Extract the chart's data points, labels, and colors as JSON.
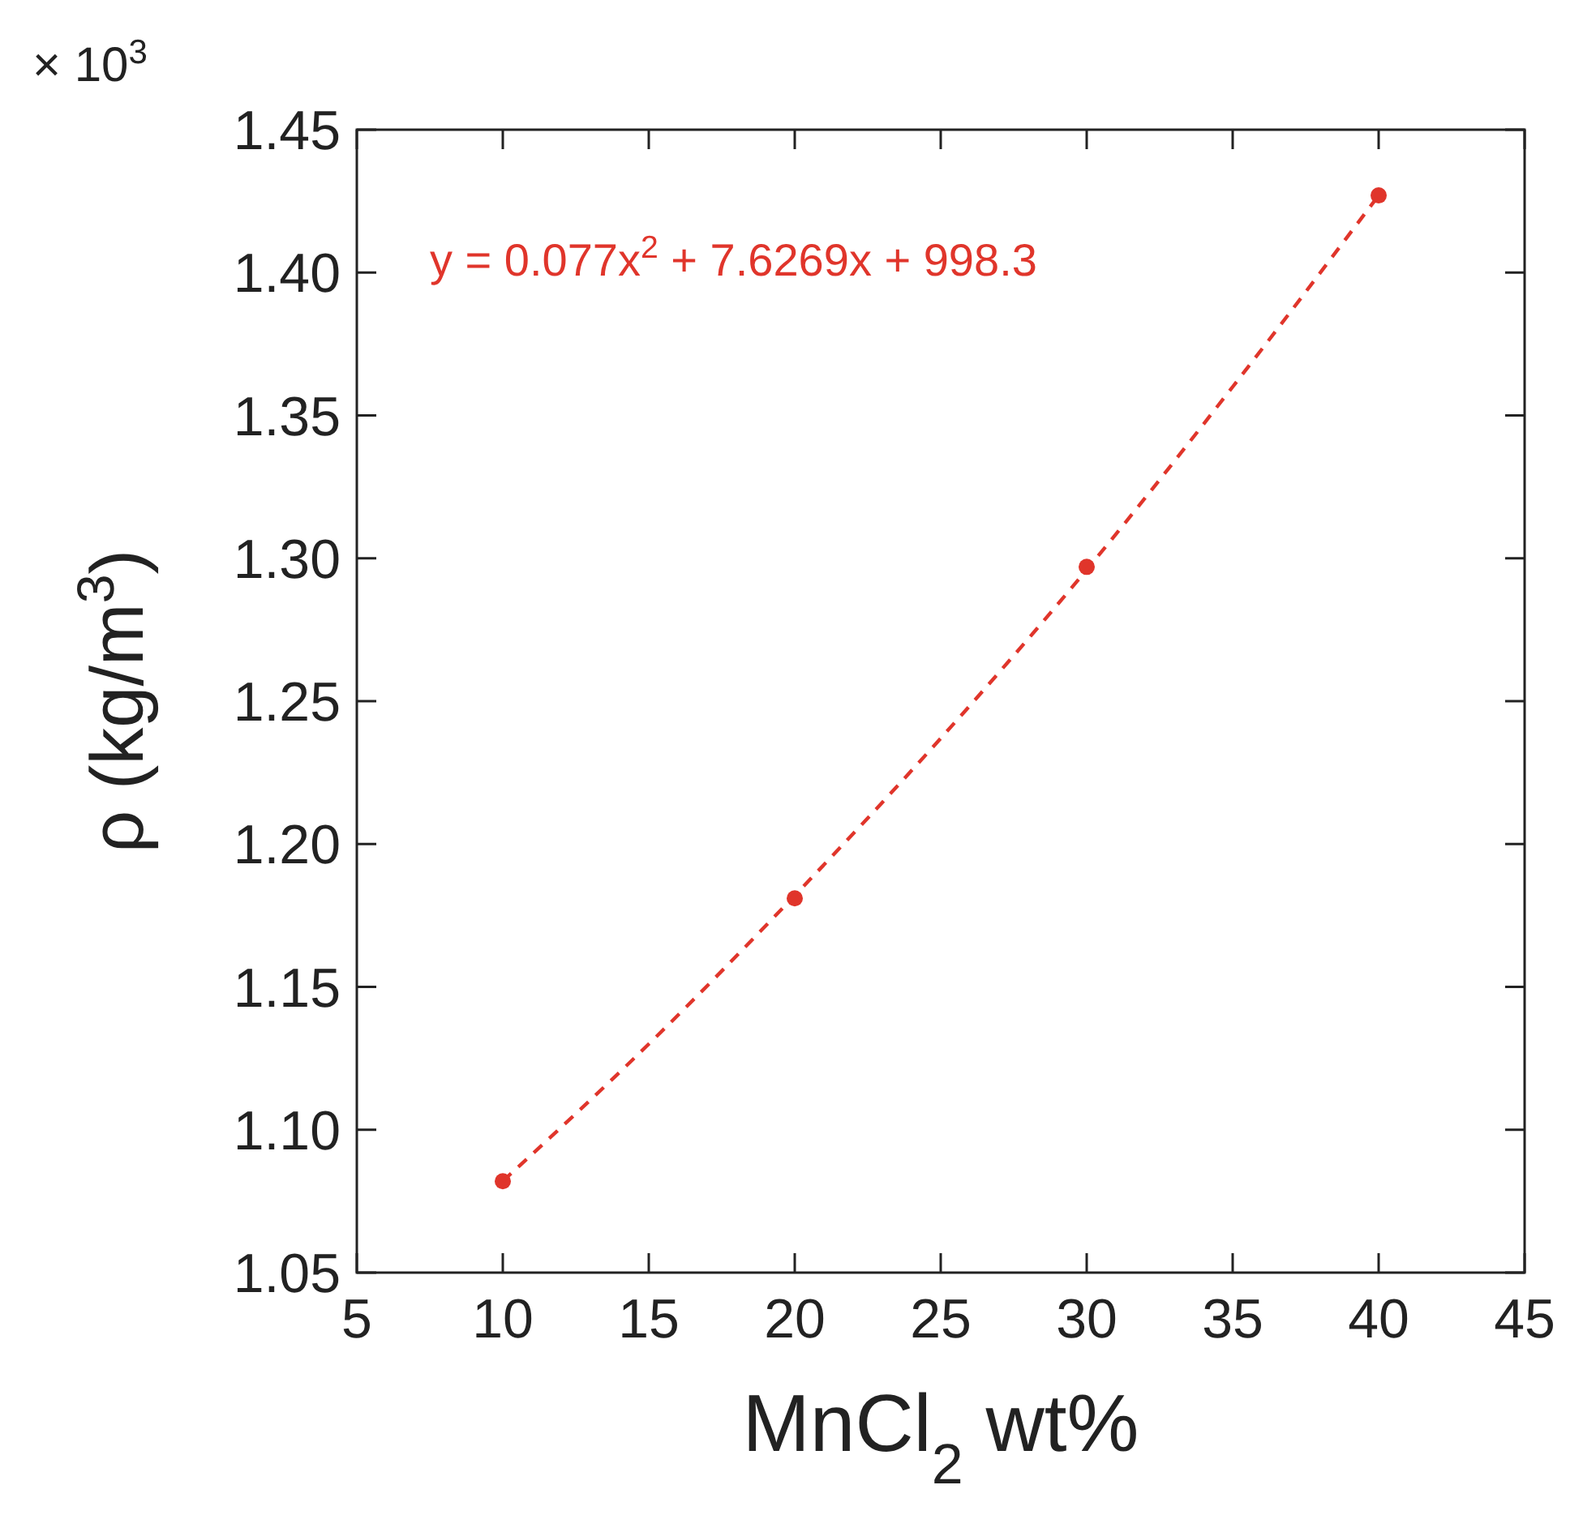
{
  "chart_data": {
    "type": "scatter",
    "xlabel": "MnCl$_{2}$ wt%",
    "ylabel": "ρ (kg/m$^{3}$)",
    "xlim": [
      5,
      45
    ],
    "xticks": [
      5,
      10,
      15,
      20,
      25,
      30,
      35,
      40,
      45
    ],
    "ylim": [
      1.05,
      1.45
    ],
    "yticks": [
      {
        "value": 1.05,
        "label": "1.05"
      },
      {
        "value": 1.1,
        "label": "1.10"
      },
      {
        "value": 1.15,
        "label": "1.15"
      },
      {
        "value": 1.2,
        "label": "1.20"
      },
      {
        "value": 1.25,
        "label": "1.25"
      },
      {
        "value": 1.3,
        "label": "1.30"
      },
      {
        "value": 1.35,
        "label": "1.35"
      },
      {
        "value": 1.4,
        "label": "1.40"
      },
      {
        "value": 1.45,
        "label": "1.45"
      }
    ],
    "grid": false,
    "marker": "circle",
    "annotations": [
      "× 10$^{3}$",
      "y = 0.077x$^{2}$ + 7.6269x + 998.3"
    ],
    "series": [
      {
        "color": "#e0352b",
        "x": [
          10,
          20,
          30,
          40
        ],
        "values": [
          1.082,
          1.181,
          1.297,
          1.427
        ]
      },
      {
        "type": "line",
        "color": "#e0352b",
        "line_style": "dashed",
        "marker": "none",
        "x": [
          10,
          15,
          20,
          25,
          30,
          35,
          40
        ],
        "values": [
          1.082,
          1.13,
          1.182,
          1.237,
          1.296,
          1.36,
          1.427
        ]
      }
    ]
  }
}
